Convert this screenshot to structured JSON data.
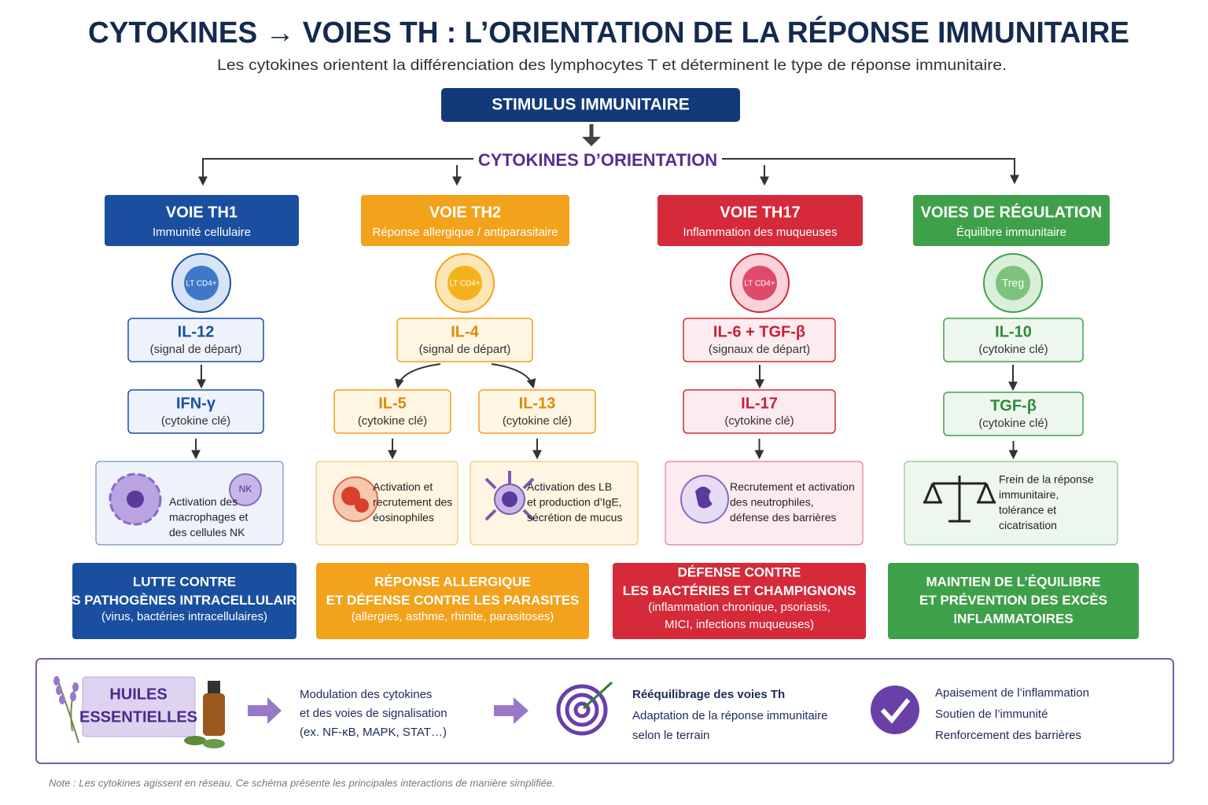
{
  "header": {
    "title": "CYTOKINES → VOIES TH : L’ORIENTATION DE LA RÉPONSE IMMUNITAIRE",
    "subtitle": "Les cytokines orientent la différenciation des lymphocytes T et déterminent le type de réponse immunitaire."
  },
  "stimulus": "STIMULUS IMMUNITAIRE",
  "orientation": "CYTOKINES D’ORIENTATION",
  "pathways": [
    {
      "title": "VOIE TH1",
      "subtitle": "Immunité cellulaire",
      "cell": "LT CD4+",
      "signal": {
        "name": "IL-12",
        "note": "(signal de départ)"
      },
      "keys": [
        {
          "name": "IFN-γ",
          "note": "(cytokine clé)"
        }
      ],
      "effects": [
        {
          "lines": [
            "Activation des",
            "macrophages et",
            "des cellules NK"
          ],
          "badge": "NK"
        }
      ],
      "outcome": {
        "headline": [
          "LUTTE CONTRE",
          "LES PATHOGÈNES INTRACELLULAIRES"
        ],
        "detail": [
          "(virus, bactéries intracellulaires)"
        ]
      }
    },
    {
      "title": "VOIE TH2",
      "subtitle": "Réponse allergique / antiparasitaire",
      "cell": "LT CD4+",
      "signal": {
        "name": "IL-4",
        "note": "(signal de départ)"
      },
      "keys": [
        {
          "name": "IL-5",
          "note": "(cytokine clé)"
        },
        {
          "name": "IL-13",
          "note": "(cytokine clé)"
        }
      ],
      "effects": [
        {
          "lines": [
            "Activation et",
            "recrutement des",
            "éosinophiles"
          ]
        },
        {
          "lines": [
            "Activation des LB",
            "et production d’IgE,",
            "sécrétion de mucus"
          ]
        }
      ],
      "outcome": {
        "headline": [
          "RÉPONSE ALLERGIQUE",
          "ET DÉFENSE CONTRE LES PARASITES"
        ],
        "detail": [
          "(allergies, asthme, rhinite, parasitoses)"
        ]
      }
    },
    {
      "title": "VOIE TH17",
      "subtitle": "Inflammation des muqueuses",
      "cell": "LT CD4+",
      "signal": {
        "name": "IL-6 + TGF-β",
        "note": "(signaux de départ)"
      },
      "keys": [
        {
          "name": "IL-17",
          "note": "(cytokine clé)"
        }
      ],
      "effects": [
        {
          "lines": [
            "Recrutement et activation",
            "des neutrophiles,",
            "défense des barrières"
          ]
        }
      ],
      "outcome": {
        "headline": [
          "DÉFENSE CONTRE",
          "LES BACTÉRIES ET CHAMPIGNONS"
        ],
        "detail": [
          "(inflammation chronique, psoriasis,",
          "MICI, infections muqueuses)"
        ]
      }
    },
    {
      "title": "VOIES DE RÉGULATION",
      "subtitle": "Équilibre immunitaire",
      "cell": "Treg",
      "signal": {
        "name": "IL-10",
        "note": "(cytokine clé)"
      },
      "keys": [
        {
          "name": "TGF-β",
          "note": "(cytokine clé)"
        }
      ],
      "effects": [
        {
          "lines": [
            "Frein de la réponse",
            "immunitaire,",
            "tolérance et",
            "cicatrisation"
          ]
        }
      ],
      "outcome": {
        "headline": [
          "MAINTIEN DE L’ÉQUILIBRE",
          "ET PRÉVENTION DES EXCÈS",
          "INFLAMMATOIRES"
        ],
        "detail": []
      }
    }
  ],
  "essential_oils": {
    "label": [
      "HUILES",
      "ESSENTIELLES"
    ],
    "steps": [
      [
        "Modulation des cytokines",
        "et des voies de signalisation",
        "(ex. NF-κB, MAPK, STAT…)"
      ],
      [
        "Rééquilibrage des voies Th",
        "Adaptation de la réponse immunitaire",
        "selon le terrain"
      ],
      [
        "Apaisement de l’inflammation",
        "Soutien de l’immunité",
        "Renforcement des barrières"
      ]
    ]
  },
  "note": "Note : Les cytokines agissent en réseau. Ce schéma présente les principales interactions de manière simplifiée."
}
